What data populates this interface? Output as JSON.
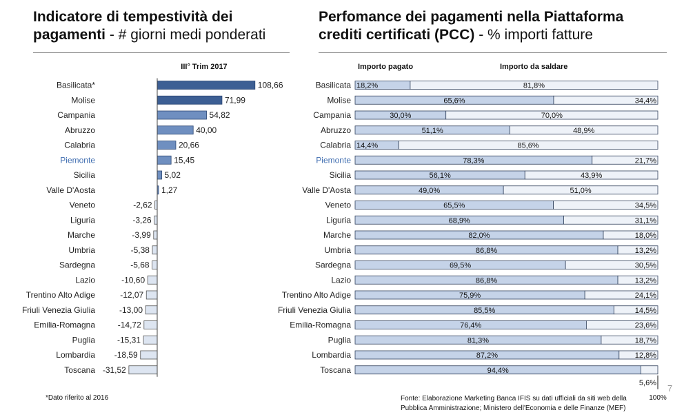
{
  "left_panel": {
    "title_bold": "Indicatore di tempestività dei pagamenti",
    "title_rest": " - # giorni medi ponderati"
  },
  "right_panel": {
    "title_bold": "Perfomance dei pagamenti nella Piattaforma crediti certificati (PCC)",
    "title_rest": " - % importi fatture"
  },
  "footnote": "*Dato riferito al 2016",
  "source": "Fonte: Elaborazione Marketing Banca IFIS su dati ufficiali da siti web della Pubblica Amministrazione; Ministero dell'Economia e delle Finanze (MEF)",
  "page_number": "7",
  "colors": {
    "bar_dark": "#3d5f94",
    "bar_mid": "#6f8fc0",
    "bar_light": "#dde5f1",
    "bar_outline": "#2f3f5a",
    "paid_fill": "#c5d3e8",
    "unpaid_fill": "#eef2f8",
    "highlight_text": "#3f6db0"
  },
  "chart_data": [
    {
      "type": "bar",
      "orientation": "horizontal",
      "title": "Indicatore di tempestività dei pagamenti - # giorni medi ponderati",
      "series": [
        {
          "name": "III° Trim 2017",
          "values": [
            108.66,
            71.99,
            54.82,
            40.0,
            20.66,
            15.45,
            5.02,
            1.27,
            -2.62,
            -3.26,
            -3.99,
            -5.38,
            -5.68,
            -10.6,
            -12.07,
            -13.0,
            -14.72,
            -15.31,
            -18.59,
            -31.52
          ]
        }
      ],
      "categories": [
        "Basilicata*",
        "Molise",
        "Campania",
        "Abruzzo",
        "Calabria",
        "Piemonte",
        "Sicilia",
        "Valle D'Aosta",
        "Veneto",
        "Liguria",
        "Marche",
        "Umbria",
        "Sardegna",
        "Lazio",
        "Trentino Alto Adige",
        "Friuli Venezia Giulia",
        "Emilia-Romagna",
        "Puglia",
        "Lombardia",
        "Toscana"
      ],
      "data_labels": [
        "108,66",
        "71,99",
        "54,82",
        "40,00",
        "20,66",
        "15,45",
        "5,02",
        "1,27",
        "-2,62",
        "-3,26",
        "-3,99",
        "-5,38",
        "-5,68",
        "-10,60",
        "-12,07",
        "-13,00",
        "-14,72",
        "-15,31",
        "-18,59",
        "-31,52"
      ],
      "highlight_category": "Piemonte"
    },
    {
      "type": "bar",
      "orientation": "horizontal",
      "stacked": true,
      "title": "Perfomance dei pagamenti nella Piattaforma crediti certificati (PCC) - % importi fatture",
      "categories": [
        "Basilicata",
        "Molise",
        "Campania",
        "Abruzzo",
        "Calabria",
        "Piemonte",
        "Sicilia",
        "Valle D'Aosta",
        "Veneto",
        "Liguria",
        "Marche",
        "Umbria",
        "Sardegna",
        "Lazio",
        "Trentino Alto Adige",
        "Friuli Venezia Giulia",
        "Emilia-Romagna",
        "Puglia",
        "Lombardia",
        "Toscana"
      ],
      "series": [
        {
          "name": "Importo pagato",
          "values": [
            18.2,
            65.6,
            30.0,
            51.1,
            14.4,
            78.3,
            56.1,
            49.0,
            65.5,
            68.9,
            82.0,
            86.8,
            69.5,
            86.8,
            75.9,
            85.5,
            76.4,
            81.3,
            87.2,
            94.4
          ],
          "labels": [
            "18,2%",
            "65,6%",
            "30,0%",
            "51,1%",
            "14,4%",
            "78,3%",
            "56,1%",
            "49,0%",
            "65,5%",
            "68,9%",
            "82,0%",
            "86,8%",
            "69,5%",
            "86,8%",
            "75,9%",
            "85,5%",
            "76,4%",
            "81,3%",
            "87,2%",
            "94,4%"
          ]
        },
        {
          "name": "Importo da saldare",
          "values": [
            81.8,
            34.4,
            70.0,
            48.9,
            85.6,
            21.7,
            43.9,
            51.0,
            34.5,
            31.1,
            18.0,
            13.2,
            30.5,
            13.2,
            24.1,
            14.5,
            23.6,
            18.7,
            12.8,
            5.6
          ],
          "labels": [
            "81,8%",
            "34,4%",
            "70,0%",
            "48,9%",
            "85,6%",
            "21,7%",
            "43,9%",
            "51,0%",
            "34,5%",
            "31,1%",
            "18,0%",
            "13,2%",
            "30,5%",
            "13,2%",
            "24,1%",
            "14,5%",
            "23,6%",
            "18,7%",
            "12,8%",
            "5,6%"
          ]
        }
      ],
      "xlim": [
        0,
        100
      ],
      "axis_end_label": "100%",
      "highlight_category": "Piemonte"
    }
  ]
}
